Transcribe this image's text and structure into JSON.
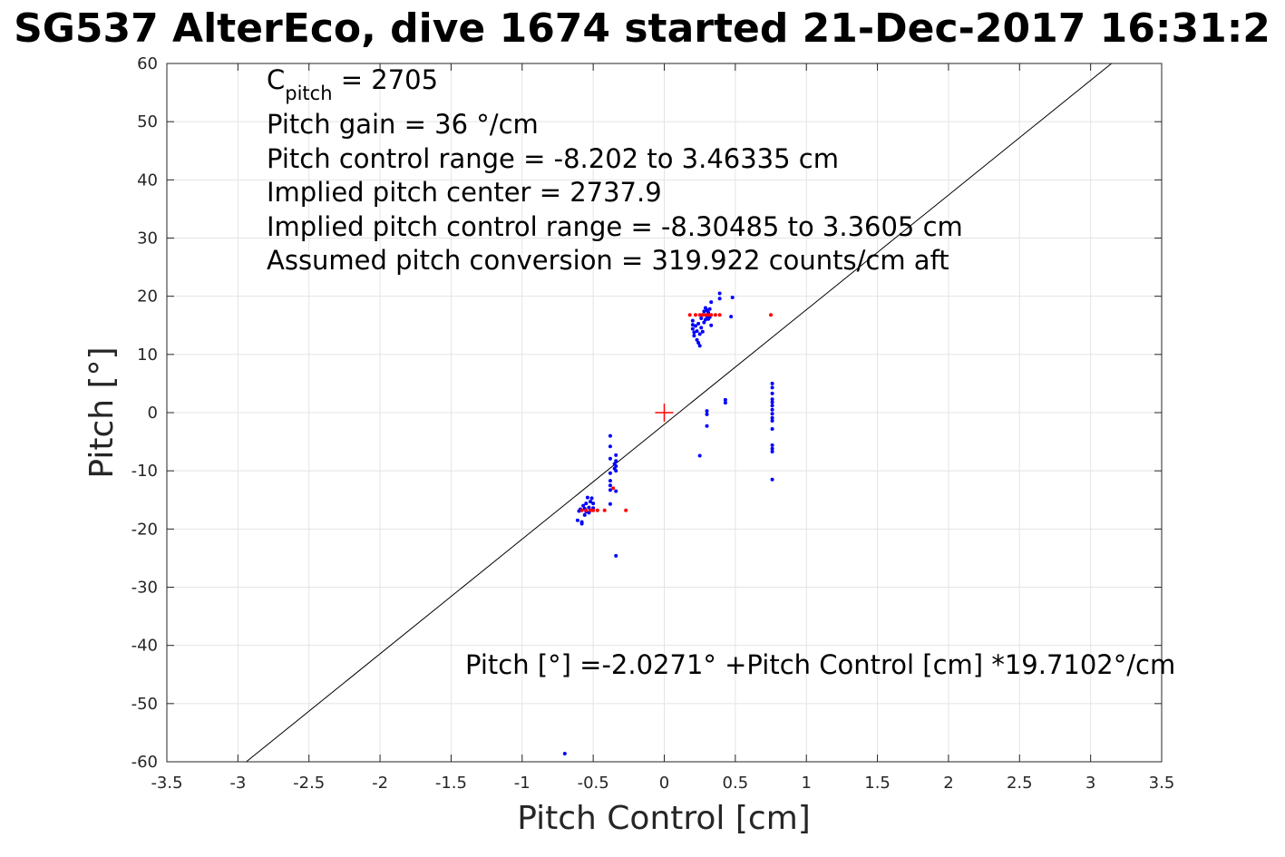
{
  "chart_data": {
    "type": "scatter",
    "title": "SG537 AlterEco, dive 1674 started 21-Dec-2017 16:31:2",
    "xlabel": "Pitch Control [cm]",
    "ylabel": "Pitch [°]",
    "xlim": [
      -3.5,
      3.5
    ],
    "ylim": [
      -60,
      60
    ],
    "grid": true,
    "xticks": [
      "-3.5",
      "-3",
      "-2.5",
      "-2",
      "-1.5",
      "-1",
      "-0.5",
      "0",
      "0.5",
      "1",
      "1.5",
      "2",
      "2.5",
      "3",
      "3.5"
    ],
    "yticks": [
      "60",
      "50",
      "40",
      "30",
      "20",
      "10",
      "0",
      "-10",
      "-20",
      "-30",
      "-40",
      "-50",
      "-60"
    ],
    "annotations": {
      "cpitch_prefix": "C",
      "cpitch_sub": "pitch",
      "cpitch_value": " = 2705",
      "pitch_gain": "Pitch gain = 36 °/cm",
      "pitch_control_range": "Pitch control range = -8.202 to 3.46335 cm",
      "implied_pitch_center": "Implied pitch center = 2737.9",
      "implied_pitch_control_range": "Implied pitch control range = -8.30485 to 3.3605 cm",
      "assumed_pitch_conversion": "Assumed pitch conversion = 319.922 counts/cm aft",
      "fit_equation": "Pitch [°] =-2.0271° +Pitch Control [cm] *19.7102°/cm"
    },
    "fit_line": {
      "intercept": -2.0271,
      "slope": 19.7102,
      "color": "#000000"
    },
    "center_marker": {
      "x": 0,
      "y": 0,
      "color": "#ff0000"
    },
    "series": [
      {
        "color": "#0000ff",
        "points": [
          [
            -0.7,
            -58.6
          ],
          [
            -0.61,
            -18.5
          ],
          [
            -0.6,
            -16.9
          ],
          [
            -0.59,
            -16.6
          ],
          [
            -0.58,
            -19.1
          ],
          [
            -0.58,
            -18.8
          ],
          [
            -0.57,
            -16.0
          ],
          [
            -0.56,
            -16.5
          ],
          [
            -0.56,
            -17.6
          ],
          [
            -0.55,
            -15.6
          ],
          [
            -0.55,
            -17.0
          ],
          [
            -0.54,
            -14.6
          ],
          [
            -0.53,
            -16.3
          ],
          [
            -0.53,
            -17.2
          ],
          [
            -0.52,
            -15.3
          ],
          [
            -0.52,
            -16.8
          ],
          [
            -0.51,
            -14.7
          ],
          [
            -0.5,
            -15.6
          ],
          [
            -0.5,
            -16.4
          ],
          [
            -0.38,
            -4.0
          ],
          [
            -0.38,
            -5.8
          ],
          [
            -0.38,
            -7.9
          ],
          [
            -0.38,
            -10.4
          ],
          [
            -0.38,
            -11.7
          ],
          [
            -0.38,
            -12.5
          ],
          [
            -0.38,
            -13.3
          ],
          [
            -0.38,
            -15.7
          ],
          [
            -0.35,
            -8.8
          ],
          [
            -0.35,
            -9.6
          ],
          [
            -0.34,
            -7.3
          ],
          [
            -0.34,
            -8.3
          ],
          [
            -0.34,
            -9.2
          ],
          [
            -0.34,
            -10.0
          ],
          [
            -0.34,
            -13.5
          ],
          [
            -0.34,
            -24.6
          ],
          [
            0.2,
            15.8
          ],
          [
            0.2,
            15.1
          ],
          [
            0.2,
            14.4
          ],
          [
            0.21,
            13.8
          ],
          [
            0.21,
            13.2
          ],
          [
            0.22,
            14.9
          ],
          [
            0.23,
            12.5
          ],
          [
            0.23,
            14.0
          ],
          [
            0.24,
            15.3
          ],
          [
            0.24,
            12.0
          ],
          [
            0.25,
            11.5
          ],
          [
            0.25,
            13.5
          ],
          [
            0.26,
            14.6
          ],
          [
            0.26,
            16.2
          ],
          [
            0.27,
            13.9
          ],
          [
            0.27,
            16.8
          ],
          [
            0.28,
            15.5
          ],
          [
            0.28,
            17.4
          ],
          [
            0.29,
            16.0
          ],
          [
            0.29,
            18.0
          ],
          [
            0.3,
            16.6
          ],
          [
            0.3,
            17.6
          ],
          [
            0.31,
            16.1
          ],
          [
            0.31,
            17.2
          ],
          [
            0.32,
            16.4
          ],
          [
            0.32,
            17.8
          ],
          [
            0.33,
            15.0
          ],
          [
            0.33,
            19.0
          ],
          [
            0.39,
            19.6
          ],
          [
            0.39,
            20.5
          ],
          [
            0.47,
            16.5
          ],
          [
            0.48,
            19.8
          ],
          [
            0.25,
            -7.4
          ],
          [
            0.3,
            0.3
          ],
          [
            0.3,
            -0.3
          ],
          [
            0.3,
            -2.3
          ],
          [
            0.43,
            2.2
          ],
          [
            0.43,
            1.7
          ],
          [
            0.76,
            5.0
          ],
          [
            0.76,
            4.3
          ],
          [
            0.76,
            3.3
          ],
          [
            0.76,
            2.3
          ],
          [
            0.76,
            1.8
          ],
          [
            0.76,
            1.2
          ],
          [
            0.76,
            0.5
          ],
          [
            0.76,
            -0.2
          ],
          [
            0.76,
            -0.9
          ],
          [
            0.76,
            -1.4
          ],
          [
            0.76,
            -2.8
          ],
          [
            0.76,
            -5.6
          ],
          [
            0.76,
            -6.2
          ],
          [
            0.76,
            -6.7
          ],
          [
            0.76,
            -11.5
          ]
        ]
      },
      {
        "color": "#ff0000",
        "points": [
          [
            -0.58,
            -16.8
          ],
          [
            -0.55,
            -16.8
          ],
          [
            -0.52,
            -16.8
          ],
          [
            -0.5,
            -16.8
          ],
          [
            -0.47,
            -16.8
          ],
          [
            -0.42,
            -16.8
          ],
          [
            -0.36,
            -13.0
          ],
          [
            -0.27,
            -16.8
          ],
          [
            0.18,
            16.8
          ],
          [
            0.22,
            16.8
          ],
          [
            0.25,
            16.8
          ],
          [
            0.27,
            16.8
          ],
          [
            0.29,
            16.8
          ],
          [
            0.31,
            16.8
          ],
          [
            0.33,
            16.8
          ],
          [
            0.36,
            16.8
          ],
          [
            0.39,
            16.8
          ],
          [
            0.75,
            16.8
          ]
        ]
      }
    ]
  }
}
